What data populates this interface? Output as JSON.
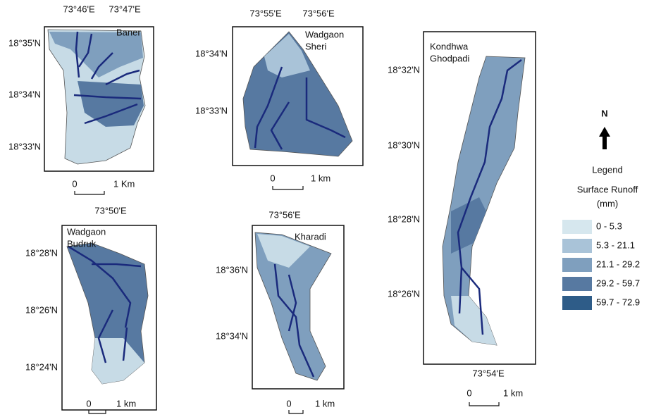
{
  "panels": [
    {
      "name": [
        "Baner"
      ],
      "x_labels": [
        "73°46'E",
        "73°47'E"
      ],
      "y_labels": [
        "18°35'N",
        "18°34'N",
        "18°33'N"
      ],
      "scale": [
        "0",
        "1 Km"
      ]
    },
    {
      "name": [
        "Wadgaon",
        "Sheri"
      ],
      "x_labels": [
        "73°55'E",
        "73°56'E"
      ],
      "y_labels": [
        "18°34'N",
        "18°33'N"
      ],
      "scale": [
        "0",
        "1 km"
      ]
    },
    {
      "name": [
        "Kondhwa",
        "Ghodpadi"
      ],
      "x_labels": [
        "73°54'E"
      ],
      "y_labels": [
        "18°32'N",
        "18°30'N",
        "18°28'N",
        "18°26'N"
      ],
      "scale": [
        "0",
        "1 km"
      ]
    },
    {
      "name": [
        "Wadgaon",
        "Budruk"
      ],
      "x_labels": [
        "73°50'E"
      ],
      "y_labels": [
        "18°28'N",
        "18°26'N",
        "18°24'N"
      ],
      "scale": [
        "0",
        "1 km"
      ]
    },
    {
      "name": [
        "Kharadi"
      ],
      "x_labels": [
        "73°56'E"
      ],
      "y_labels": [
        "18°36'N",
        "18°34'N"
      ],
      "scale": [
        "0",
        "1 km"
      ]
    }
  ],
  "legend": {
    "north": "N",
    "title": "Legend",
    "subtitle": [
      "Surface Runoff",
      "(mm)"
    ],
    "items": [
      {
        "label": "0 - 5.3",
        "color": "#d6e7ee"
      },
      {
        "label": "5.3 - 21.1",
        "color": "#a9c3d8"
      },
      {
        "label": "21.1 - 29.2",
        "color": "#7f9fbe"
      },
      {
        "label": "29.2 - 59.7",
        "color": "#5779a1"
      },
      {
        "label": "59.7 - 72.9",
        "color": "#2e5c88"
      }
    ]
  }
}
